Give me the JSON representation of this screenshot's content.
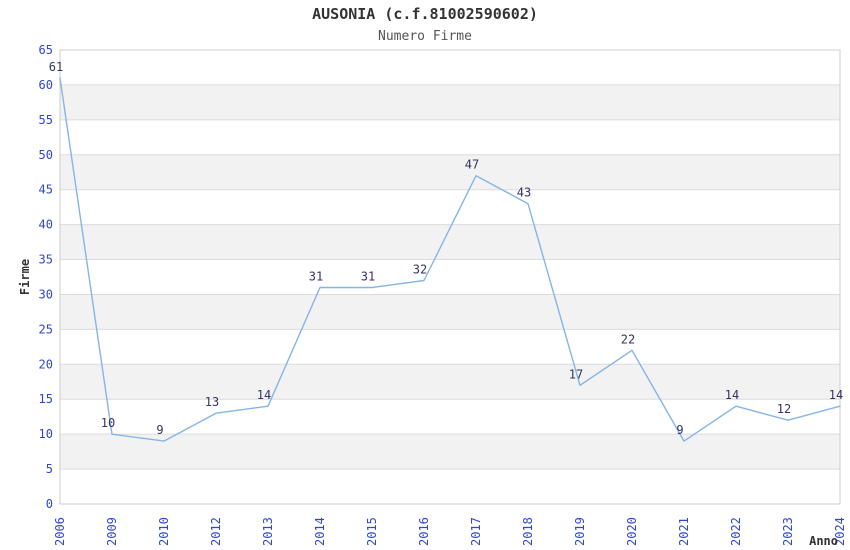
{
  "chart_data": {
    "type": "line",
    "title": "AUSONIA (c.f.81002590602)",
    "subtitle": "Numero Firme",
    "xlabel": "Anno",
    "ylabel": "Firme",
    "categories": [
      "2006",
      "2009",
      "2010",
      "2012",
      "2013",
      "2014",
      "2015",
      "2016",
      "2017",
      "2018",
      "2019",
      "2020",
      "2021",
      "2022",
      "2023",
      "2024"
    ],
    "values": [
      61,
      10,
      9,
      13,
      14,
      31,
      31,
      32,
      47,
      43,
      17,
      22,
      9,
      14,
      12,
      14
    ],
    "ylim": [
      0,
      65
    ],
    "ytick_step": 5,
    "grid": true,
    "legend": "none",
    "point_labels_visible": true,
    "colors": {
      "line": "#85b4e6",
      "tick_labels": "#2f46cf",
      "point_labels": "#333366",
      "band": "#f2f2f2",
      "gridline": "#dcdcdc",
      "border": "#cccccc",
      "title": "#333333",
      "subtitle": "#555555",
      "axis_titles": "#333333",
      "background": "#ffffff"
    }
  }
}
